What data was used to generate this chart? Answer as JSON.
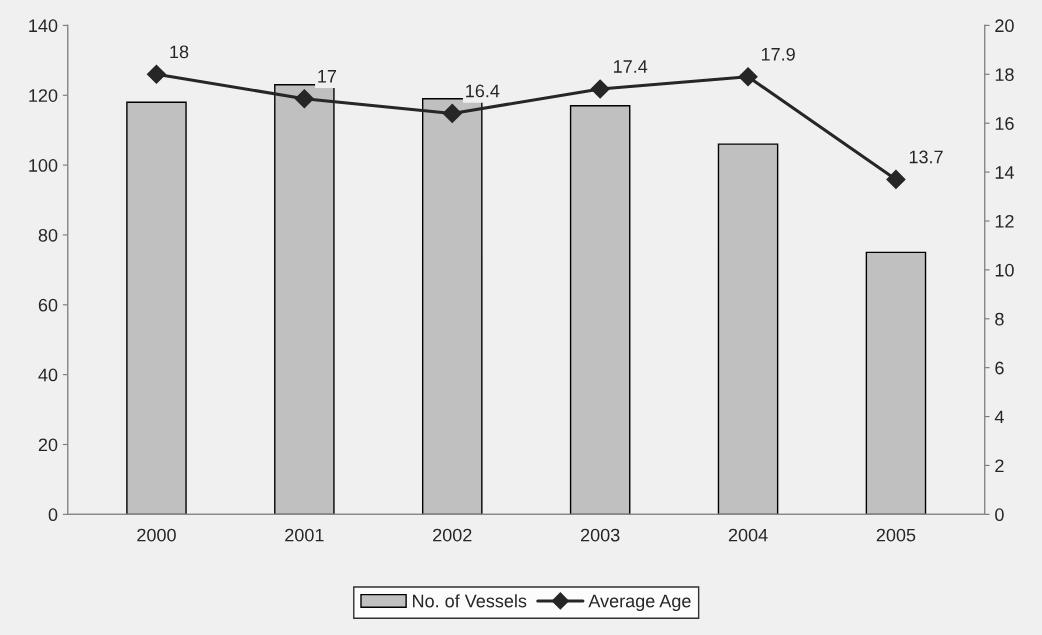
{
  "chart_data": {
    "type": "bar",
    "categories": [
      "2000",
      "2001",
      "2002",
      "2003",
      "2004",
      "2005"
    ],
    "series": [
      {
        "name": "No. of Vessels",
        "color": "#c0c0c0",
        "values": [
          118,
          123,
          119,
          117,
          106,
          75
        ]
      },
      {
        "name": "Average Age",
        "type": "line",
        "axis": "y2",
        "color": "#262626",
        "marker": "diamond",
        "values": [
          18,
          17,
          16.4,
          17.4,
          17.9,
          13.7
        ],
        "value_labels": [
          "18",
          "17",
          "16.4",
          "17.4",
          "17.9",
          "13.7"
        ]
      }
    ],
    "ylim": [
      0,
      140
    ],
    "yticks": [
      0,
      20,
      40,
      60,
      80,
      100,
      120,
      140
    ],
    "y2lim": [
      0,
      20
    ],
    "y2ticks": [
      0,
      2,
      4,
      6,
      8,
      10,
      12,
      14,
      16,
      18,
      20
    ],
    "grid": false,
    "legend": "bottom"
  }
}
